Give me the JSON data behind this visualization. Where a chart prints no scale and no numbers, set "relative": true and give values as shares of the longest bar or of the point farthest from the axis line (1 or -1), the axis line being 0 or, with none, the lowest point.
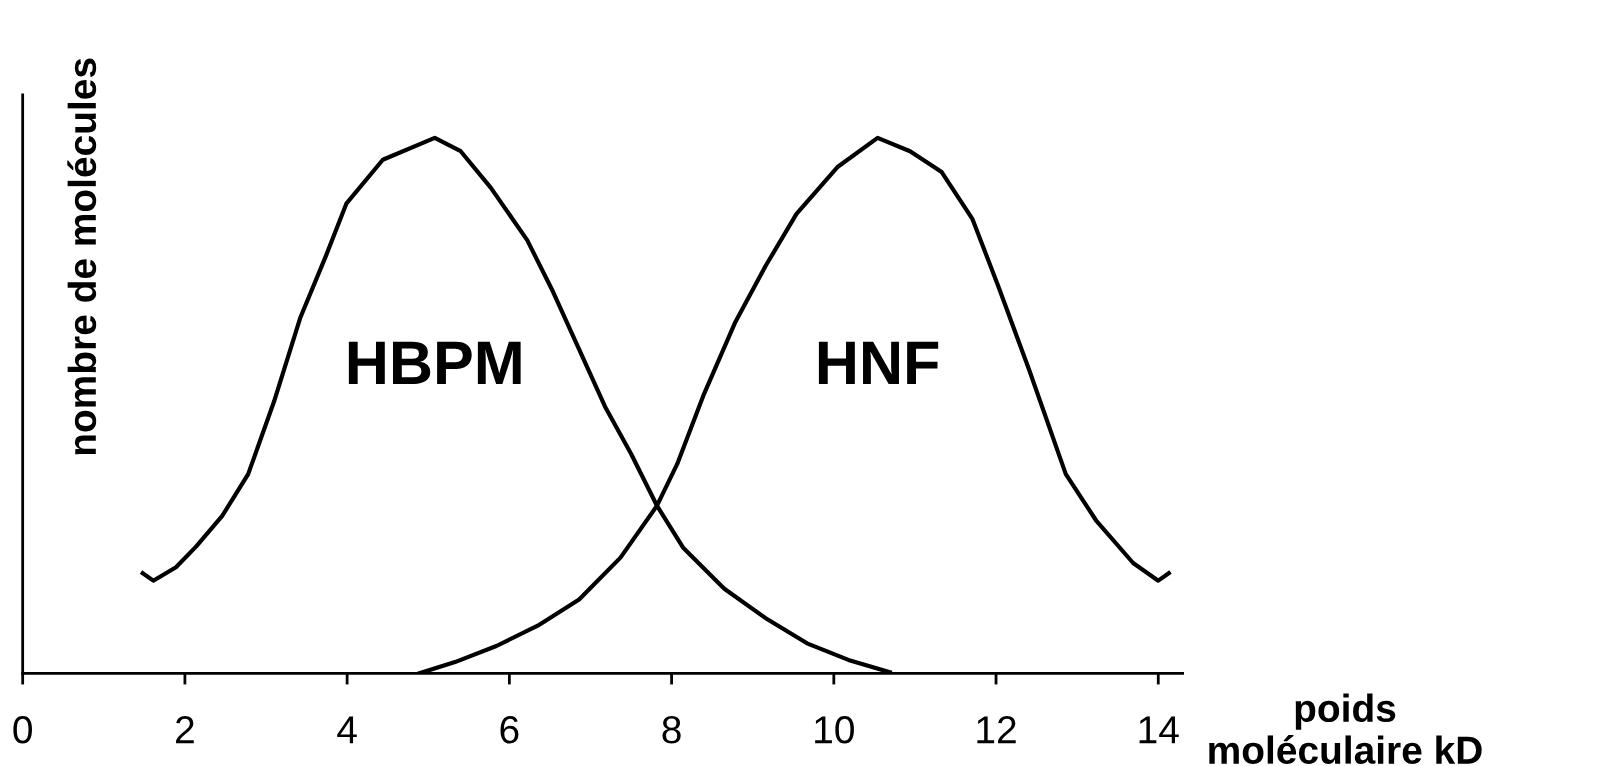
{
  "chart_data": {
    "type": "line",
    "relative": true,
    "xlabel": "poids\nmoléculaire kD",
    "ylabel": "nombre de molécules",
    "xlim": [
      0,
      14.3
    ],
    "xticks": [
      0,
      2,
      4,
      6,
      8,
      10,
      12,
      14
    ],
    "tick_labels": "x",
    "grid": false,
    "legend": false,
    "marker": "none",
    "line_style": "solid",
    "series": [
      {
        "name": "HBPM",
        "color": "#000000",
        "x": [
          1.48,
          1.61,
          1.89,
          2.14,
          2.46,
          2.78,
          3.1,
          3.42,
          3.74,
          3.99,
          4.44,
          5.08,
          5.4,
          5.77,
          6.22,
          6.54,
          6.86,
          7.18,
          7.5,
          7.82,
          8.14,
          8.65,
          9.16,
          9.67,
          10.18,
          10.69
        ],
        "values": [
          0.187,
          0.173,
          0.198,
          0.237,
          0.294,
          0.372,
          0.508,
          0.663,
          0.78,
          0.877,
          0.959,
          1.0,
          0.975,
          0.907,
          0.809,
          0.712,
          0.605,
          0.498,
          0.41,
          0.313,
          0.235,
          0.158,
          0.103,
          0.056,
          0.025,
          0.002
        ]
      },
      {
        "name": "HNF",
        "color": "#000000",
        "x": [
          4.89,
          5.33,
          5.84,
          6.35,
          6.86,
          7.37,
          7.82,
          8.07,
          8.39,
          8.78,
          9.16,
          9.54,
          10.05,
          10.54,
          10.94,
          11.33,
          11.71,
          12.03,
          12.41,
          12.86,
          13.24,
          13.69,
          14.0,
          14.13
        ],
        "values": [
          0.0,
          0.021,
          0.051,
          0.089,
          0.138,
          0.216,
          0.313,
          0.391,
          0.518,
          0.654,
          0.761,
          0.858,
          0.946,
          1.0,
          0.975,
          0.936,
          0.848,
          0.722,
          0.566,
          0.372,
          0.284,
          0.206,
          0.173,
          0.187
        ]
      }
    ]
  }
}
